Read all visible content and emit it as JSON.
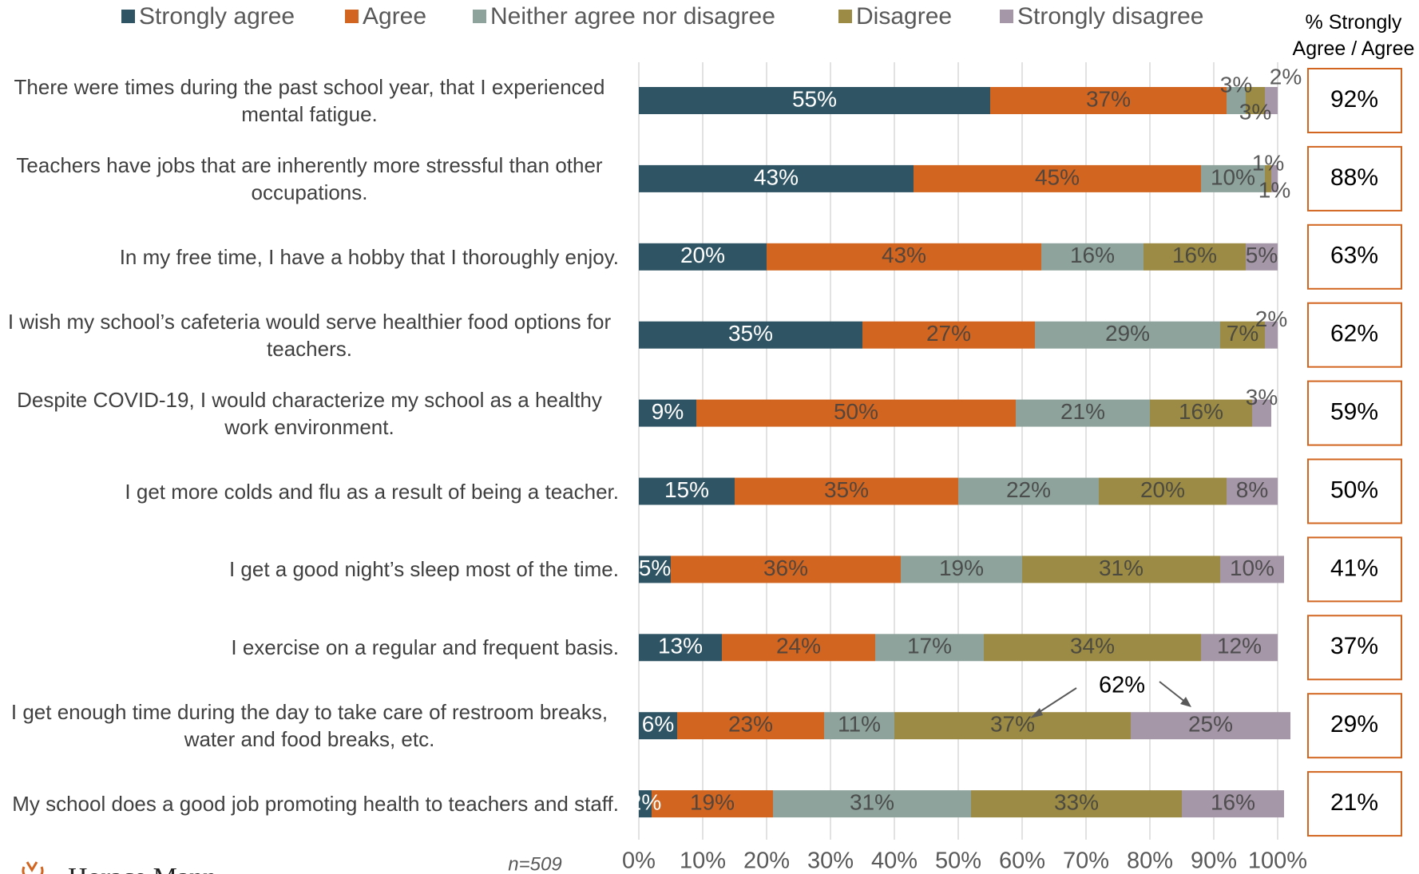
{
  "chart_data": {
    "type": "stacked_bar_horizontal",
    "categories": [
      "There were times during the past school year, that I experienced mental fatigue.",
      "Teachers have jobs that are inherently more stressful than other occupations.",
      "In my free time, I have a hobby that I thoroughly enjoy.",
      "I wish my school’s cafeteria would serve healthier food options for teachers.",
      "Despite COVID-19, I would characterize my school as a healthy work environment.",
      "I get more colds and flu as a result of being a teacher.",
      "I get a good night’s sleep most of the time.",
      "I exercise on a regular and frequent basis.",
      "I get enough time during the day to take care of restroom breaks, water and food breaks, etc.",
      "My school does a good job promoting health to teachers and staff."
    ],
    "series": [
      {
        "name": "Strongly agree",
        "color": "#2f5464",
        "values": [
          55,
          43,
          20,
          35,
          9,
          15,
          5,
          13,
          6,
          2
        ],
        "value_labels": [
          "55%",
          "43%",
          "20%",
          "35%",
          "9%",
          "15%",
          "5%",
          "13%",
          "6%",
          "2%"
        ]
      },
      {
        "name": "Agree",
        "color": "#d2651f",
        "values": [
          37,
          45,
          43,
          27,
          50,
          35,
          36,
          24,
          23,
          19
        ],
        "value_labels": [
          "37%",
          "45%",
          "43%",
          "27%",
          "50%",
          "35%",
          "36%",
          "24%",
          "23%",
          "19%"
        ]
      },
      {
        "name": "Neither agree nor disagree",
        "color": "#8fa39d",
        "values": [
          3,
          10,
          16,
          29,
          21,
          22,
          19,
          17,
          11,
          31
        ],
        "value_labels": [
          "3%",
          "10%",
          "16%",
          "29%",
          "21%",
          "22%",
          "19%",
          "17%",
          "11%",
          "31%"
        ]
      },
      {
        "name": "Disagree",
        "color": "#9c8b45",
        "values": [
          3,
          1,
          16,
          7,
          16,
          20,
          31,
          34,
          37,
          33
        ],
        "value_labels": [
          "3%",
          "1%",
          "16%",
          "7%",
          "16%",
          "20%",
          "31%",
          "34%",
          "37%",
          "33%"
        ]
      },
      {
        "name": "Strongly disagree",
        "color": "#a597a7",
        "values": [
          2,
          1,
          5,
          2,
          3,
          8,
          10,
          12,
          25,
          16
        ],
        "value_labels": [
          "2%",
          "1%",
          "5%",
          "2%",
          "3%",
          "8%",
          "10%",
          "12%",
          "25%",
          "16%"
        ]
      }
    ],
    "xlim": [
      0,
      100
    ],
    "xticks": [
      {
        "value": 0,
        "label": "0%"
      },
      {
        "value": 10,
        "label": "10%"
      },
      {
        "value": 20,
        "label": "20%"
      },
      {
        "value": 30,
        "label": "30%"
      },
      {
        "value": 40,
        "label": "40%"
      },
      {
        "value": 50,
        "label": "50%"
      },
      {
        "value": 60,
        "label": "60%"
      },
      {
        "value": 70,
        "label": "70%"
      },
      {
        "value": 80,
        "label": "80%"
      },
      {
        "value": 90,
        "label": "90%"
      },
      {
        "value": 100,
        "label": "100%"
      }
    ],
    "grid": true,
    "legend": "top",
    "summary_title": "% Strongly Agree / Agree",
    "summary_values": [
      92,
      88,
      63,
      62,
      59,
      50,
      41,
      37,
      29,
      21
    ],
    "summary_labels": [
      "92%",
      "88%",
      "63%",
      "62%",
      "59%",
      "50%",
      "41%",
      "37%",
      "29%",
      "21%"
    ],
    "summary_color": "#d2651f",
    "annotation": "62%",
    "note": "n=509",
    "brand": "Horace Mann"
  }
}
